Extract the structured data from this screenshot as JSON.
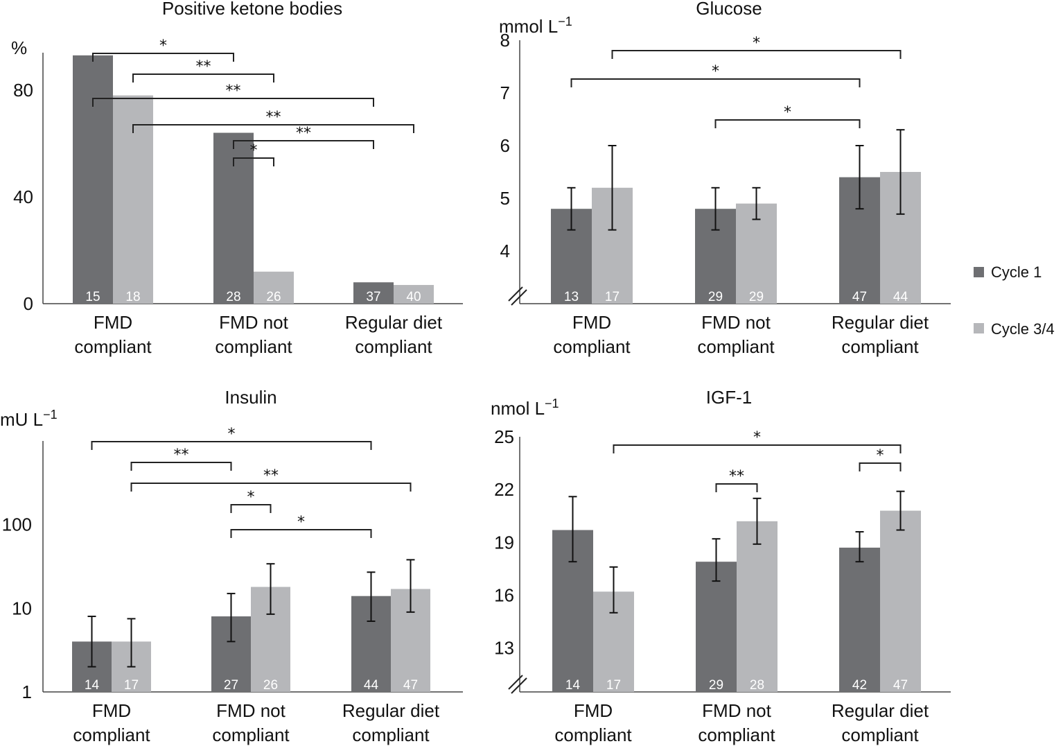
{
  "legend": [
    {
      "name": "Cycle 1",
      "color": "#6e6f72"
    },
    {
      "name": "Cycle 3/4",
      "color": "#b6b7ba"
    }
  ],
  "chart_data": [
    {
      "id": "ketone",
      "type": "bar",
      "title": "Positive ketone bodies",
      "ylabel": "%",
      "ylabel_sup": "",
      "scale": "linear",
      "ylim": [
        0,
        94
      ],
      "yticks": [
        "0",
        "40",
        "80"
      ],
      "ytick_values": [
        0,
        40,
        80
      ],
      "axis_break": false,
      "categories": [
        [
          "FMD",
          "compliant"
        ],
        [
          "FMD not",
          "compliant"
        ],
        [
          "Regular diet",
          "compliant"
        ]
      ],
      "series": [
        {
          "name": "Cycle 1",
          "values": [
            93,
            64,
            8
          ],
          "n": [
            "15",
            "28",
            "37"
          ]
        },
        {
          "name": "Cycle 3/4",
          "values": [
            78,
            12,
            7
          ],
          "n": [
            "18",
            "26",
            "40"
          ]
        }
      ],
      "significance": [
        {
          "from": [
            0,
            0
          ],
          "to": [
            1,
            0
          ],
          "label": "*"
        },
        {
          "from": [
            0,
            1
          ],
          "to": [
            1,
            1
          ],
          "label": "**"
        },
        {
          "from": [
            0,
            0
          ],
          "to": [
            2,
            0
          ],
          "label": "**"
        },
        {
          "from": [
            0,
            1
          ],
          "to": [
            2,
            1
          ],
          "label": "**"
        },
        {
          "from": [
            1,
            0
          ],
          "to": [
            2,
            0
          ],
          "label": "**"
        },
        {
          "from": [
            1,
            0
          ],
          "to": [
            1,
            1
          ],
          "label": "*"
        }
      ]
    },
    {
      "id": "glucose",
      "type": "bar",
      "title": "Glucose",
      "ylabel": "mmol L",
      "ylabel_sup": "−1",
      "scale": "linear",
      "ylim": [
        3,
        8
      ],
      "yticks": [
        "4",
        "5",
        "6",
        "7",
        "8"
      ],
      "ytick_values": [
        4,
        5,
        6,
        7,
        8
      ],
      "axis_break": true,
      "categories": [
        [
          "FMD",
          "compliant"
        ],
        [
          "FMD not",
          "compliant"
        ],
        [
          "Regular diet",
          "compliant"
        ]
      ],
      "series": [
        {
          "name": "Cycle 1",
          "values": [
            4.8,
            4.8,
            5.4
          ],
          "err_low": [
            4.4,
            4.4,
            4.8
          ],
          "err_high": [
            5.2,
            5.2,
            6.0
          ],
          "n": [
            "13",
            "29",
            "47"
          ]
        },
        {
          "name": "Cycle 3/4",
          "values": [
            5.2,
            4.9,
            5.5
          ],
          "err_low": [
            4.4,
            4.6,
            4.7
          ],
          "err_high": [
            6.0,
            5.2,
            6.3
          ],
          "n": [
            "17",
            "29",
            "44"
          ]
        }
      ],
      "significance": [
        {
          "from": [
            0,
            1
          ],
          "to": [
            2,
            1
          ],
          "label": "*"
        },
        {
          "from": [
            0,
            0
          ],
          "to": [
            2,
            0
          ],
          "label": "*"
        },
        {
          "from": [
            1,
            0
          ],
          "to": [
            2,
            0
          ],
          "label": "*"
        }
      ]
    },
    {
      "id": "insulin",
      "type": "bar",
      "title": "Insulin",
      "ylabel": "mU L",
      "ylabel_sup": "−1",
      "scale": "log",
      "ylim": [
        1,
        1000
      ],
      "yticks": [
        "1",
        "10",
        "100"
      ],
      "ytick_values": [
        1,
        10,
        100
      ],
      "axis_break": false,
      "categories": [
        [
          "FMD",
          "compliant"
        ],
        [
          "FMD not",
          "compliant"
        ],
        [
          "Regular diet",
          "compliant"
        ]
      ],
      "series": [
        {
          "name": "Cycle 1",
          "values": [
            4,
            8,
            14
          ],
          "err_low": [
            2,
            4,
            7
          ],
          "err_high": [
            8,
            15,
            27
          ],
          "n": [
            "14",
            "27",
            "44"
          ]
        },
        {
          "name": "Cycle 3/4",
          "values": [
            4,
            18,
            17
          ],
          "err_low": [
            2,
            8.5,
            9
          ],
          "err_high": [
            7.5,
            34,
            38
          ],
          "n": [
            "17",
            "26",
            "47"
          ]
        }
      ],
      "significance": [
        {
          "from": [
            0,
            0
          ],
          "to": [
            2,
            0
          ],
          "label": "*"
        },
        {
          "from": [
            0,
            1
          ],
          "to": [
            1,
            0
          ],
          "label": "**"
        },
        {
          "from": [
            0,
            1
          ],
          "to": [
            2,
            1
          ],
          "label": "**"
        },
        {
          "from": [
            1,
            0
          ],
          "to": [
            1,
            1
          ],
          "label": "*"
        },
        {
          "from": [
            1,
            0
          ],
          "to": [
            2,
            0
          ],
          "label": "*"
        }
      ]
    },
    {
      "id": "igf1",
      "type": "bar",
      "title": "IGF-1",
      "ylabel": "nmol L",
      "ylabel_sup": "−1",
      "scale": "linear",
      "ylim": [
        10.5,
        25
      ],
      "yticks": [
        "13",
        "16",
        "19",
        "22",
        "25"
      ],
      "ytick_values": [
        13,
        16,
        19,
        22,
        25
      ],
      "axis_break": true,
      "categories": [
        [
          "FMD",
          "compliant"
        ],
        [
          "FMD not",
          "compliant"
        ],
        [
          "Regular diet",
          "compliant"
        ]
      ],
      "series": [
        {
          "name": "Cycle 1",
          "values": [
            19.7,
            17.9,
            18.7
          ],
          "err_low": [
            17.9,
            16.8,
            17.9
          ],
          "err_high": [
            21.6,
            19.2,
            19.6
          ],
          "n": [
            "14",
            "29",
            "42"
          ]
        },
        {
          "name": "Cycle 3/4",
          "values": [
            16.2,
            20.2,
            20.8
          ],
          "err_low": [
            15.0,
            18.9,
            19.7
          ],
          "err_high": [
            17.6,
            21.5,
            21.9
          ],
          "n": [
            "17",
            "28",
            "47"
          ]
        }
      ],
      "significance": [
        {
          "from": [
            0,
            1
          ],
          "to": [
            2,
            1
          ],
          "label": "*"
        },
        {
          "from": [
            1,
            0
          ],
          "to": [
            1,
            1
          ],
          "label": "**"
        },
        {
          "from": [
            2,
            0
          ],
          "to": [
            2,
            1
          ],
          "label": "*"
        }
      ]
    }
  ]
}
